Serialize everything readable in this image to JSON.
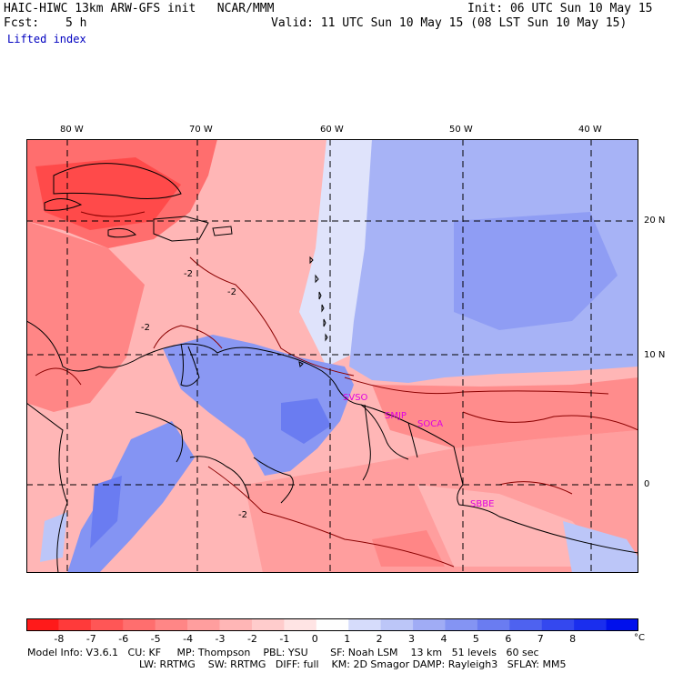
{
  "header": {
    "title": "HAIC-HIWC 13km ARW-GFS init   NCAR/MMM",
    "fcst_label": "Fcst:",
    "fcst_value": "5 h",
    "init": "Init: 06 UTC Sun 10 May 15",
    "valid": "Valid: 11 UTC Sun 10 May 15 (08 LST Sun 10 May 15)",
    "field": "Lifted index"
  },
  "map": {
    "lon_labels": [
      "80 W",
      "70 W",
      "60 W",
      "50 W",
      "40 W"
    ],
    "lat_labels": [
      "20 N",
      "10 N",
      "0"
    ],
    "stations": [
      "SVSO",
      "SMJP",
      "SOCA",
      "SBBE"
    ],
    "contour_labels": [
      "-2",
      "-2",
      "-2",
      "-2"
    ]
  },
  "colorbar": {
    "labels": [
      "-8",
      "-7",
      "-6",
      "-5",
      "-4",
      "-3",
      "-2",
      "-1",
      "0",
      "1",
      "2",
      "3",
      "4",
      "5",
      "6",
      "7",
      "8"
    ],
    "unit": "°C",
    "colors": [
      "#ff1a1a",
      "#ff3a3a",
      "#ff5656",
      "#ff6e6e",
      "#ff8686",
      "#ff9e9e",
      "#ffb6b6",
      "#ffcccc",
      "#ffe4e4",
      "#fefefe",
      "#d6dcfb",
      "#bcc6f8",
      "#a0acf5",
      "#8494f3",
      "#6a7cf1",
      "#4e62f0",
      "#3448ef",
      "#1a2eee",
      "#0010ec"
    ]
  },
  "footer": {
    "line1": "Model Info: V3.6.1   CU: KF     MP: Thompson    PBL: YSU       SF: Noah LSM    13 km   51 levels   60 sec",
    "line2": "LW: RRTMG    SW: RRTMG   DIFF: full    KM: 2D Smagor DAMP: Rayleigh3   SFLAY: MM5"
  }
}
